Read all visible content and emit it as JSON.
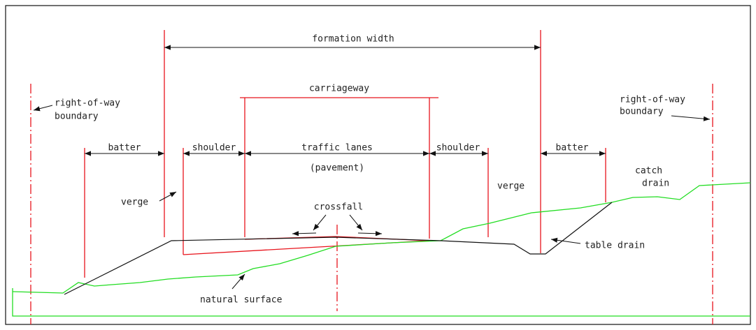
{
  "labels": {
    "formation_width": "formation width",
    "carriageway": "carriageway",
    "row_left": [
      "right-of-way",
      "boundary"
    ],
    "row_right": [
      "right-of-way",
      "boundary"
    ],
    "batter_left": "batter",
    "batter_right": "batter",
    "shoulder_left": "shoulder",
    "shoulder_right": "shoulder",
    "traffic_lanes": "traffic lanes",
    "pavement": "(pavement)",
    "verge_left": "verge",
    "verge_right": "verge",
    "crossfall": "crossfall",
    "catch_drain": [
      "catch",
      "drain"
    ],
    "table_drain": "table drain",
    "natural_surface": "natural surface"
  }
}
